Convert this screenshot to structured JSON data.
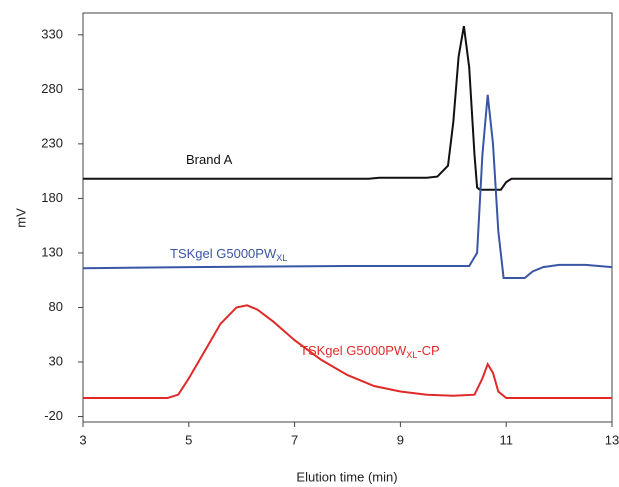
{
  "chart_data": {
    "type": "line",
    "y_label": "mV",
    "x_label": "Elution time (min)",
    "xlim": [
      3,
      13
    ],
    "xticks": [
      3,
      5,
      7,
      9,
      11,
      13
    ],
    "ylim": [
      -25,
      350
    ],
    "yticks": [
      -20,
      30,
      80,
      130,
      180,
      230,
      280,
      330
    ],
    "series": [
      {
        "name": [
          "Brand A"
        ],
        "color": "#111111",
        "x": [
          3,
          8.4,
          8.6,
          9.5,
          9.7,
          9.9,
          10.0,
          10.1,
          10.2,
          10.3,
          10.4,
          10.45,
          10.5,
          10.9,
          11.0,
          11.1,
          13
        ],
        "values": [
          198,
          198,
          199,
          199,
          200,
          210,
          250,
          310,
          338,
          300,
          220,
          190,
          188,
          188,
          195,
          198,
          198
        ]
      },
      {
        "name": [
          "TSKgel G5000PW",
          "XL"
        ],
        "color": "#3a55a4",
        "x": [
          3,
          5,
          8,
          10.3,
          10.45,
          10.55,
          10.65,
          10.75,
          10.85,
          10.95,
          11.35,
          11.5,
          11.7,
          12,
          12.5,
          13
        ],
        "values": [
          116,
          117,
          118,
          118,
          130,
          220,
          275,
          230,
          150,
          107,
          107,
          113,
          117,
          119,
          119,
          117
        ]
      },
      {
        "name": [
          "TSKgel G5000PW",
          "XL",
          "-CP"
        ],
        "color": "#e02a2a",
        "x": [
          3,
          4.6,
          4.8,
          5.0,
          5.3,
          5.6,
          5.9,
          6.1,
          6.3,
          6.6,
          7.0,
          7.5,
          8.0,
          8.5,
          9.0,
          9.5,
          10.0,
          10.4,
          10.55,
          10.65,
          10.75,
          10.85,
          11.0,
          13
        ],
        "values": [
          -3,
          -3,
          0,
          15,
          40,
          65,
          80,
          82,
          78,
          67,
          50,
          32,
          18,
          8,
          3,
          0,
          -1,
          0,
          15,
          28,
          20,
          3,
          -3,
          -3
        ]
      }
    ]
  }
}
